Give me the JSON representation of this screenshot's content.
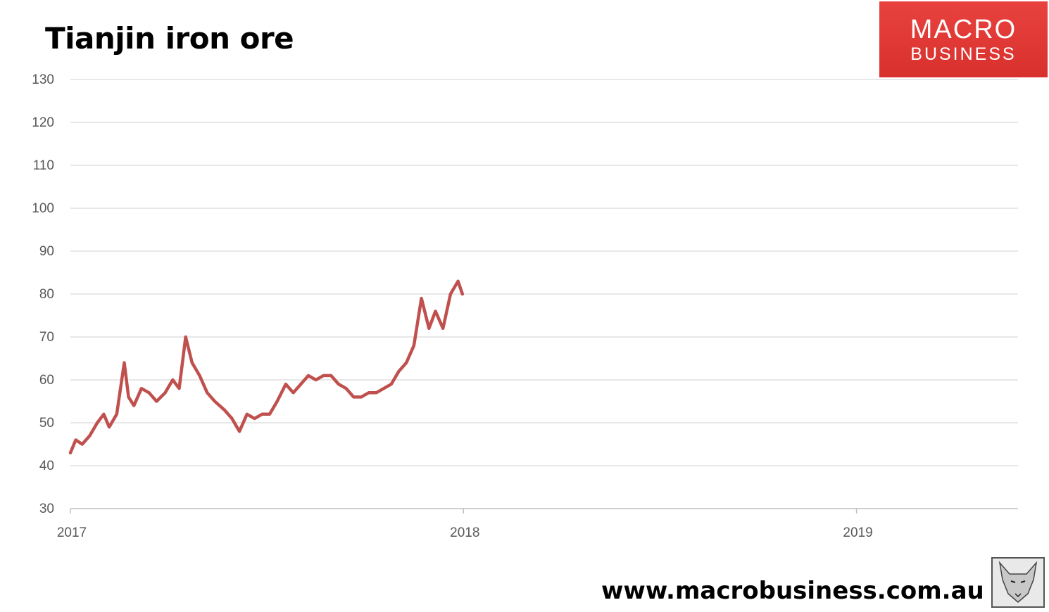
{
  "header": {
    "title": "Tianjin iron ore"
  },
  "logo": {
    "line1": "MACRO",
    "line2": "BUSINESS",
    "bg_color": "#e0403d",
    "text_color": "#ffffff"
  },
  "footer": {
    "url": "www.macrobusiness.com.au",
    "fox_icon": "fox-head-icon"
  },
  "chart_data": {
    "type": "line",
    "title": "Tianjin iron ore",
    "xlabel": "",
    "ylabel": "",
    "ylim": [
      30,
      130
    ],
    "yticks": [
      30,
      40,
      50,
      60,
      70,
      80,
      90,
      100,
      110,
      120,
      130
    ],
    "xlim": [
      "2017-01-01",
      "2019-05-31"
    ],
    "xticks": [
      {
        "label": "2017",
        "date": "2017-01-01"
      },
      {
        "label": "2018",
        "date": "2018-01-01"
      },
      {
        "label": "2019",
        "date": "2019-01-01"
      }
    ],
    "grid": "horizontal",
    "legend": "none",
    "series": [
      {
        "color": "#c0504d",
        "points": [
          [
            "2017-01-01",
            43
          ],
          [
            "2017-01-06",
            46
          ],
          [
            "2017-01-12",
            45
          ],
          [
            "2017-01-19",
            47
          ],
          [
            "2017-01-26",
            50
          ],
          [
            "2017-02-01",
            52
          ],
          [
            "2017-02-06",
            49
          ],
          [
            "2017-02-13",
            52
          ],
          [
            "2017-02-20",
            64
          ],
          [
            "2017-02-24",
            56
          ],
          [
            "2017-03-01",
            54
          ],
          [
            "2017-03-08",
            58
          ],
          [
            "2017-03-15",
            57
          ],
          [
            "2017-03-22",
            55
          ],
          [
            "2017-03-30",
            57
          ],
          [
            "2017-04-06",
            60
          ],
          [
            "2017-04-12",
            58
          ],
          [
            "2017-04-18",
            70
          ],
          [
            "2017-04-24",
            64
          ],
          [
            "2017-05-01",
            61
          ],
          [
            "2017-05-08",
            57
          ],
          [
            "2017-05-15",
            55
          ],
          [
            "2017-05-24",
            53
          ],
          [
            "2017-05-31",
            51
          ],
          [
            "2017-06-07",
            48
          ],
          [
            "2017-06-14",
            52
          ],
          [
            "2017-06-21",
            51
          ],
          [
            "2017-06-28",
            52
          ],
          [
            "2017-07-05",
            52
          ],
          [
            "2017-07-12",
            55
          ],
          [
            "2017-07-20",
            59
          ],
          [
            "2017-07-27",
            57
          ],
          [
            "2017-08-03",
            59
          ],
          [
            "2017-08-10",
            61
          ],
          [
            "2017-08-17",
            60
          ],
          [
            "2017-08-24",
            61
          ],
          [
            "2017-08-31",
            61
          ],
          [
            "2017-09-07",
            59
          ],
          [
            "2017-09-14",
            58
          ],
          [
            "2017-09-21",
            56
          ],
          [
            "2017-09-28",
            56
          ],
          [
            "2017-10-05",
            57
          ],
          [
            "2017-10-12",
            57
          ],
          [
            "2017-10-19",
            58
          ],
          [
            "2017-10-26",
            59
          ],
          [
            "2017-11-02",
            62
          ],
          [
            "2017-11-09",
            64
          ],
          [
            "2017-11-16",
            68
          ],
          [
            "2017-11-23",
            79
          ],
          [
            "2017-11-30",
            72
          ],
          [
            "2017-12-06",
            76
          ],
          [
            "2017-12-13",
            72
          ],
          [
            "2017-12-20",
            80
          ],
          [
            "2017-12-27",
            83
          ],
          [
            "2017-12-31",
            80
          ]
        ]
      }
    ]
  }
}
